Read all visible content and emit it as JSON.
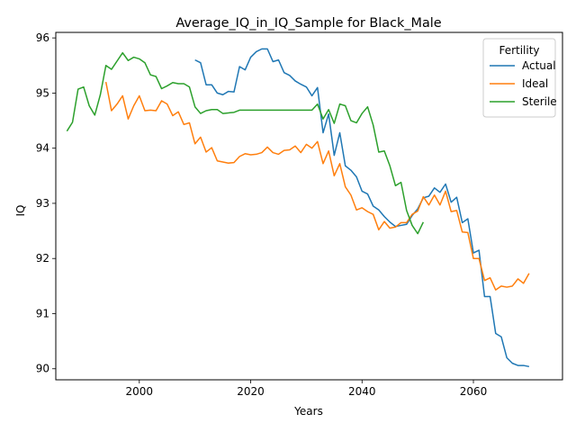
{
  "chart_data": {
    "type": "line",
    "title": "Average_IQ_in_IQ_Sample for Black_Male",
    "xlabel": "Years",
    "ylabel": "IQ",
    "xlim": [
      1985,
      2076
    ],
    "ylim": [
      89.8,
      96.1
    ],
    "xticks": [
      2000,
      2020,
      2040,
      2060
    ],
    "yticks": [
      90,
      91,
      92,
      93,
      94,
      95,
      96
    ],
    "grid": false,
    "legend": {
      "title": "Fertility",
      "placement": "top-right"
    },
    "series": [
      {
        "name": "Actual",
        "color": "#1f77b4",
        "x": [
          2010,
          2011,
          2012,
          2013,
          2014,
          2015,
          2016,
          2017,
          2018,
          2019,
          2020,
          2021,
          2022,
          2023,
          2024,
          2025,
          2026,
          2027,
          2028,
          2029,
          2030,
          2031,
          2032,
          2033,
          2034,
          2035,
          2036,
          2037,
          2038,
          2039,
          2040,
          2041,
          2042,
          2043,
          2044,
          2045,
          2046,
          2047,
          2048,
          2049,
          2050,
          2051,
          2052,
          2053,
          2054,
          2055,
          2056,
          2057,
          2058,
          2059,
          2060,
          2061,
          2062,
          2063,
          2064,
          2065,
          2066,
          2067,
          2068,
          2069,
          2070
        ],
        "values": [
          95.6,
          95.55,
          95.15,
          95.15,
          95.0,
          94.97,
          95.03,
          95.02,
          95.48,
          95.42,
          95.65,
          95.75,
          95.8,
          95.8,
          95.57,
          95.6,
          95.37,
          95.32,
          95.22,
          95.16,
          95.11,
          94.95,
          95.1,
          94.28,
          94.62,
          93.87,
          94.28,
          93.68,
          93.6,
          93.48,
          93.22,
          93.17,
          92.95,
          92.88,
          92.76,
          92.66,
          92.58,
          92.6,
          92.62,
          92.78,
          92.9,
          93.1,
          93.13,
          93.28,
          93.2,
          93.35,
          93.02,
          93.11,
          92.65,
          92.72,
          92.1,
          92.15,
          91.31,
          91.31,
          90.64,
          90.58,
          90.2,
          90.1,
          90.06,
          90.06,
          90.04
        ]
      },
      {
        "name": "Ideal",
        "color": "#ff7f0e",
        "x": [
          1994,
          1995,
          1996,
          1997,
          1998,
          1999,
          2000,
          2001,
          2002,
          2003,
          2004,
          2005,
          2006,
          2007,
          2008,
          2009,
          2010,
          2011,
          2012,
          2013,
          2014,
          2015,
          2016,
          2017,
          2018,
          2019,
          2020,
          2021,
          2022,
          2023,
          2024,
          2025,
          2026,
          2027,
          2028,
          2029,
          2030,
          2031,
          2032,
          2033,
          2034,
          2035,
          2036,
          2037,
          2038,
          2039,
          2040,
          2041,
          2042,
          2043,
          2044,
          2045,
          2046,
          2047,
          2048,
          2049,
          2050,
          2051,
          2052,
          2053,
          2054,
          2055,
          2056,
          2057,
          2058,
          2059,
          2060,
          2061,
          2062,
          2063,
          2064,
          2065,
          2066,
          2067,
          2068,
          2069,
          2070
        ],
        "values": [
          95.2,
          94.68,
          94.8,
          94.95,
          94.53,
          94.77,
          94.95,
          94.68,
          94.69,
          94.68,
          94.86,
          94.8,
          94.59,
          94.66,
          94.43,
          94.46,
          94.08,
          94.2,
          93.93,
          94.01,
          93.77,
          93.75,
          93.73,
          93.74,
          93.85,
          93.9,
          93.88,
          93.89,
          93.92,
          94.02,
          93.92,
          93.89,
          93.96,
          93.97,
          94.04,
          93.92,
          94.07,
          94.0,
          94.12,
          93.72,
          93.95,
          93.5,
          93.72,
          93.3,
          93.15,
          92.88,
          92.92,
          92.85,
          92.8,
          92.52,
          92.67,
          92.55,
          92.57,
          92.65,
          92.65,
          92.8,
          92.86,
          93.12,
          92.97,
          93.15,
          92.97,
          93.22,
          92.85,
          92.87,
          92.48,
          92.47,
          92.0,
          92.0,
          91.6,
          91.65,
          91.43,
          91.5,
          91.48,
          91.5,
          91.63,
          91.55,
          91.73
        ]
      },
      {
        "name": "Sterile",
        "color": "#2ca02c",
        "x": [
          1987,
          1988,
          1989,
          1990,
          1991,
          1992,
          1993,
          1994,
          1995,
          1996,
          1997,
          1998,
          1999,
          2000,
          2001,
          2002,
          2003,
          2004,
          2005,
          2006,
          2007,
          2008,
          2009,
          2010,
          2011,
          2012,
          2013,
          2014,
          2015,
          2016,
          2017,
          2018,
          2019,
          2020,
          2021,
          2022,
          2023,
          2024,
          2025,
          2026,
          2027,
          2028,
          2029,
          2030,
          2031,
          2032,
          2033,
          2034,
          2035,
          2036,
          2037,
          2038,
          2039,
          2040,
          2041,
          2042,
          2043,
          2044,
          2045,
          2046,
          2047,
          2048,
          2049,
          2050,
          2051
        ],
        "values": [
          94.31,
          94.47,
          95.07,
          95.11,
          94.77,
          94.6,
          94.97,
          95.5,
          95.43,
          95.58,
          95.73,
          95.59,
          95.65,
          95.62,
          95.55,
          95.33,
          95.3,
          95.08,
          95.13,
          95.19,
          95.17,
          95.17,
          95.11,
          94.75,
          94.63,
          94.68,
          94.7,
          94.7,
          94.63,
          94.64,
          94.65,
          94.69,
          94.69,
          94.69,
          94.69,
          94.69,
          94.69,
          94.69,
          94.69,
          94.69,
          94.69,
          94.69,
          94.69,
          94.69,
          94.69,
          94.8,
          94.53,
          94.7,
          94.45,
          94.8,
          94.77,
          94.5,
          94.46,
          94.63,
          94.75,
          94.42,
          93.93,
          93.95,
          93.68,
          93.32,
          93.38,
          92.87,
          92.6,
          92.45,
          92.66
        ]
      }
    ]
  }
}
